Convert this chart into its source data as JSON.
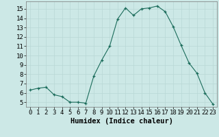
{
  "x": [
    0,
    1,
    2,
    3,
    4,
    5,
    6,
    7,
    8,
    9,
    10,
    11,
    12,
    13,
    14,
    15,
    16,
    17,
    18,
    19,
    20,
    21,
    22,
    23
  ],
  "y": [
    6.3,
    6.5,
    6.6,
    5.8,
    5.6,
    5.0,
    5.0,
    4.9,
    7.8,
    9.5,
    11.0,
    13.9,
    15.1,
    14.3,
    15.0,
    15.1,
    15.3,
    14.7,
    13.1,
    11.1,
    9.2,
    8.1,
    6.0,
    4.8
  ],
  "line_color": "#1a6b5a",
  "marker": "+",
  "marker_color": "#1a6b5a",
  "bg_color": "#cce8e6",
  "grid_color": "#b8d8d5",
  "xlabel": "Humidex (Indice chaleur)",
  "xlim": [
    -0.5,
    23.5
  ],
  "ylim": [
    4.5,
    15.8
  ],
  "yticks": [
    5,
    6,
    7,
    8,
    9,
    10,
    11,
    12,
    13,
    14,
    15
  ],
  "xticks": [
    0,
    1,
    2,
    3,
    4,
    5,
    6,
    7,
    8,
    9,
    10,
    11,
    12,
    13,
    14,
    15,
    16,
    17,
    18,
    19,
    20,
    21,
    22,
    23
  ],
  "xlabel_fontsize": 7.5,
  "tick_fontsize": 6.5,
  "line_width": 0.8,
  "marker_size": 3.5
}
